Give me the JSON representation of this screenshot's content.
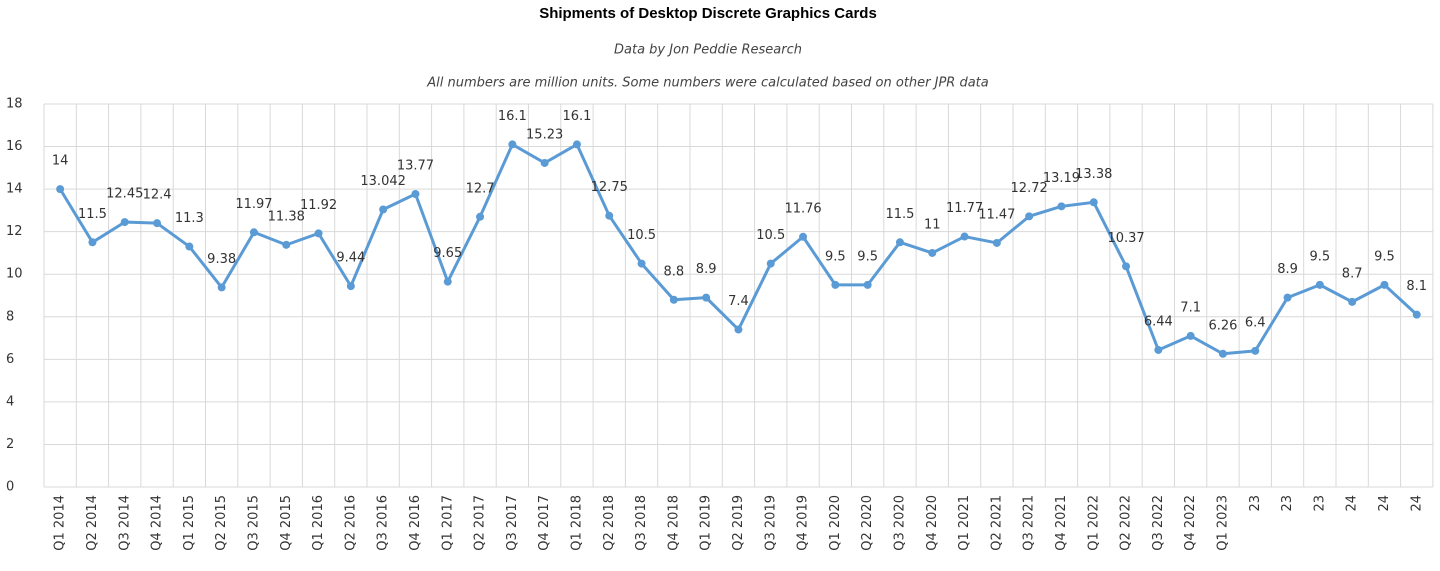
{
  "chart_data": {
    "type": "line",
    "title": "Shipments of Desktop Discrete Graphics Cards",
    "subtitle": "Data by Jon Peddie Research",
    "note": "All numbers are million units. Some numbers were calculated based on other JPR data",
    "categories": [
      "Q1 2014",
      "Q2 2014",
      "Q3 2014",
      "Q4 2014",
      "Q1 2015",
      "Q2 2015",
      "Q3 2015",
      "Q4 2015",
      "Q1 2016",
      "Q2 2016",
      "Q3 2016",
      "Q4 2016",
      "Q1 2017",
      "Q2 2017",
      "Q3 2017",
      "Q4 2017",
      "Q1 2018",
      "Q2 2018",
      "Q3 2018",
      "Q4 2018",
      "Q1 2019",
      "Q2 2019",
      "Q3 2019",
      "Q4 2019",
      "Q1 2020",
      "Q2 2020",
      "Q3 2020",
      "Q4 2020",
      "Q1 2021",
      "Q2 2021",
      "Q3 2021",
      "Q4 2021",
      "Q1 2022",
      "Q2 2022",
      "Q3 2022",
      "Q4 2022",
      "Q1 2023",
      "23",
      "23",
      "23",
      "24",
      "24",
      "24"
    ],
    "values": [
      14,
      11.5,
      12.45,
      12.4,
      11.3,
      9.38,
      11.97,
      11.38,
      11.92,
      9.44,
      13.042,
      13.77,
      9.65,
      12.7,
      16.1,
      15.23,
      16.1,
      12.75,
      10.5,
      8.8,
      8.9,
      7.4,
      10.5,
      11.76,
      9.5,
      9.5,
      11.5,
      11,
      11.77,
      11.47,
      12.72,
      13.19,
      13.38,
      10.37,
      6.44,
      7.1,
      6.26,
      6.4,
      8.9,
      9.5,
      8.7,
      9.5,
      8.1
    ],
    "color": "#5b9bd5",
    "ylim": [
      0,
      18
    ],
    "yticks": [
      0,
      2,
      4,
      6,
      8,
      10,
      12,
      14,
      16,
      18
    ],
    "grid": true
  }
}
